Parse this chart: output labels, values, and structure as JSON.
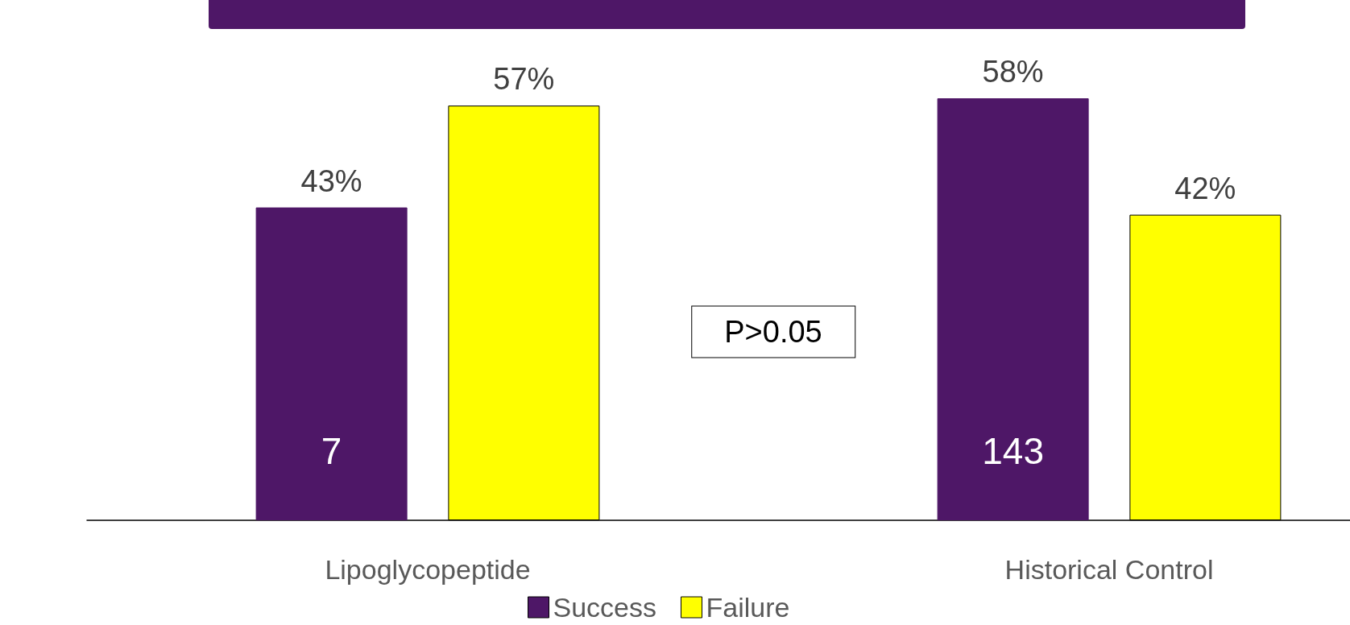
{
  "chart_data": {
    "type": "bar",
    "categories": [
      "Lipoglycopeptide",
      "Historical Control"
    ],
    "series": [
      {
        "name": "Success",
        "color": "#4e1767",
        "values": [
          43,
          58
        ],
        "value_labels": [
          "43%",
          "58%"
        ]
      },
      {
        "name": "Failure",
        "color": "#ffff00",
        "values": [
          57,
          42
        ],
        "value_labels": [
          "57%",
          "42%"
        ]
      }
    ],
    "tick_labels": "x",
    "grid": false,
    "legend": "bottom",
    "annotations": [
      "7",
      "143",
      "P>0.05"
    ]
  }
}
